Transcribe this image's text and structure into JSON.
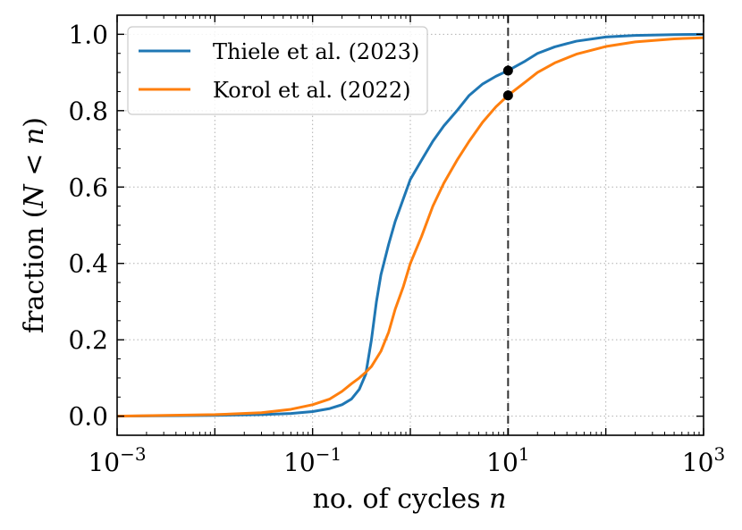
{
  "chart_data": {
    "type": "line",
    "x_scale": "log",
    "xlabel": {
      "prefix": "no. of cycles ",
      "var": "n"
    },
    "ylabel": {
      "prefix": "fraction (",
      "var1": "N",
      "op": " < ",
      "var2": "n",
      "suffix": ")"
    },
    "xlim": [
      0.001,
      1000
    ],
    "ylim": [
      -0.05,
      1.05
    ],
    "x_ticks": [
      {
        "value": 0.001,
        "base": "10",
        "exp": "−3"
      },
      {
        "value": 0.1,
        "base": "10",
        "exp": "−1"
      },
      {
        "value": 10,
        "base": "10",
        "exp": "1"
      },
      {
        "value": 1000,
        "base": "10",
        "exp": "3"
      }
    ],
    "y_ticks": [
      {
        "value": 0.0,
        "label": "0.0"
      },
      {
        "value": 0.2,
        "label": "0.2"
      },
      {
        "value": 0.4,
        "label": "0.4"
      },
      {
        "value": 0.6,
        "label": "0.6"
      },
      {
        "value": 0.8,
        "label": "0.8"
      },
      {
        "value": 1.0,
        "label": "1.0"
      }
    ],
    "grid": true,
    "legend": "top-left",
    "series": [
      {
        "name": "Thiele et al. (2023)",
        "color": "#1f77b4",
        "x": [
          0.001,
          0.01,
          0.03,
          0.06,
          0.1,
          0.15,
          0.2,
          0.25,
          0.3,
          0.35,
          0.4,
          0.45,
          0.5,
          0.6,
          0.7,
          0.85,
          1.0,
          1.3,
          1.7,
          2.2,
          3.0,
          4.0,
          5.5,
          7.5,
          10,
          15,
          20,
          30,
          50,
          100,
          200,
          500,
          1000
        ],
        "y": [
          0.0,
          0.002,
          0.004,
          0.007,
          0.012,
          0.02,
          0.03,
          0.045,
          0.07,
          0.11,
          0.2,
          0.3,
          0.37,
          0.45,
          0.51,
          0.57,
          0.62,
          0.67,
          0.72,
          0.76,
          0.8,
          0.84,
          0.87,
          0.89,
          0.905,
          0.93,
          0.95,
          0.967,
          0.982,
          0.993,
          0.997,
          0.999,
          1.0
        ]
      },
      {
        "name": "Korol et al. (2022)",
        "color": "#ff7f0e",
        "x": [
          0.001,
          0.01,
          0.03,
          0.06,
          0.1,
          0.15,
          0.2,
          0.25,
          0.3,
          0.35,
          0.4,
          0.5,
          0.6,
          0.7,
          0.85,
          1.0,
          1.3,
          1.7,
          2.2,
          3.0,
          4.0,
          5.5,
          7.5,
          10,
          15,
          20,
          30,
          50,
          100,
          200,
          500,
          1000
        ],
        "y": [
          0.0,
          0.004,
          0.009,
          0.018,
          0.03,
          0.045,
          0.065,
          0.085,
          0.1,
          0.115,
          0.13,
          0.17,
          0.22,
          0.28,
          0.34,
          0.4,
          0.47,
          0.55,
          0.61,
          0.67,
          0.72,
          0.77,
          0.81,
          0.84,
          0.875,
          0.9,
          0.925,
          0.948,
          0.968,
          0.98,
          0.988,
          0.991
        ]
      }
    ],
    "annotations": {
      "vline_x": 10,
      "points": [
        {
          "x": 10,
          "y": 0.905
        },
        {
          "x": 10,
          "y": 0.84
        }
      ]
    }
  }
}
